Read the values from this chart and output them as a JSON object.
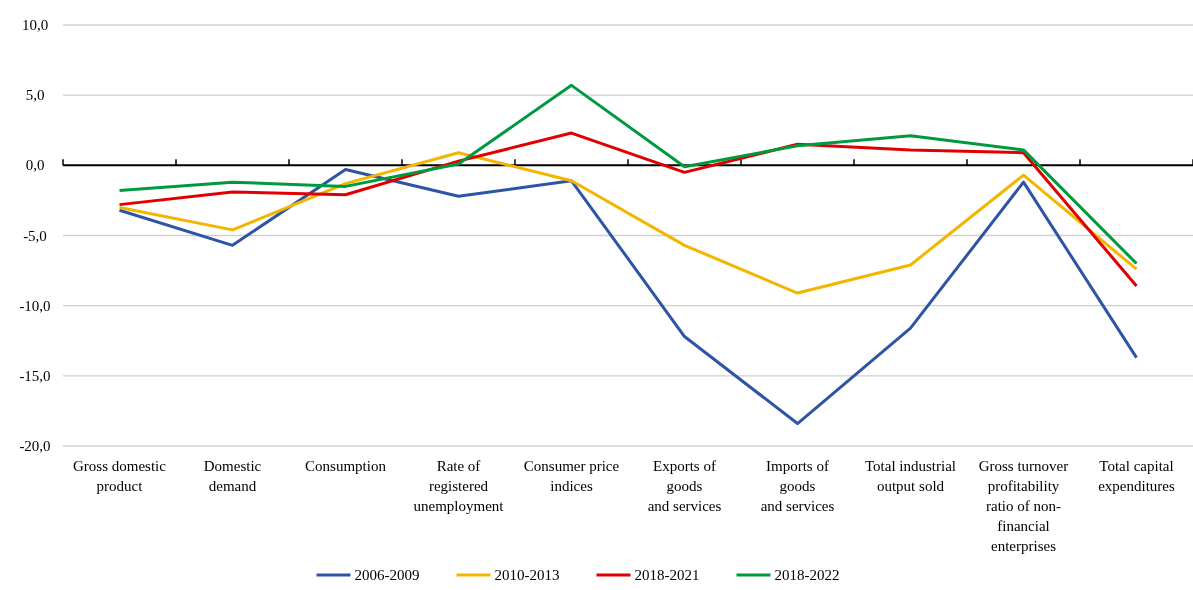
{
  "chart_data": {
    "type": "line",
    "categories": [
      "Gross domestic\nproduct",
      "Domestic\ndemand",
      "Consumption",
      "Rate of\nregistered\nunemployment",
      "Consumer price\nindices",
      "Exports of\ngoods\nand services",
      "Imports of\ngoods\nand services",
      "Total industrial\noutput sold",
      "Gross turnover\nprofitability\nratio of non-\nfinancial\nenterprises",
      "Total capital\nexpenditures"
    ],
    "series": [
      {
        "name": "2006-2009",
        "color": "#2e54a6",
        "values": [
          -3.2,
          -5.7,
          -0.3,
          -2.2,
          -1.1,
          -12.2,
          -18.4,
          -11.6,
          -1.2,
          -13.7
        ]
      },
      {
        "name": "2010-2013",
        "color": "#f2b600",
        "values": [
          -3.0,
          -4.6,
          -1.3,
          0.9,
          -1.1,
          -5.7,
          -9.1,
          -7.1,
          -0.7,
          -7.4
        ]
      },
      {
        "name": "2018-2021",
        "color": "#e00000",
        "values": [
          -2.8,
          -1.9,
          -2.1,
          0.3,
          2.3,
          -0.5,
          1.5,
          1.1,
          0.9,
          -8.6
        ]
      },
      {
        "name": "2018-2022",
        "color": "#009a3e",
        "values": [
          -1.8,
          -1.2,
          -1.5,
          0.1,
          5.7,
          -0.1,
          1.4,
          2.1,
          1.1,
          -7.0
        ]
      }
    ],
    "ylim": [
      -20,
      10
    ],
    "yticks": [
      {
        "value": -20,
        "label": "-20,0"
      },
      {
        "value": -15,
        "label": "-15,0"
      },
      {
        "value": -10,
        "label": "-10,0"
      },
      {
        "value": -5,
        "label": "-5,0"
      },
      {
        "value": 0,
        "label": "0,0"
      },
      {
        "value": 5,
        "label": "5,0"
      },
      {
        "value": 10,
        "label": "10,0"
      }
    ],
    "grid": "y",
    "legend": "bottom",
    "marker": "none",
    "line_style": "solid"
  }
}
